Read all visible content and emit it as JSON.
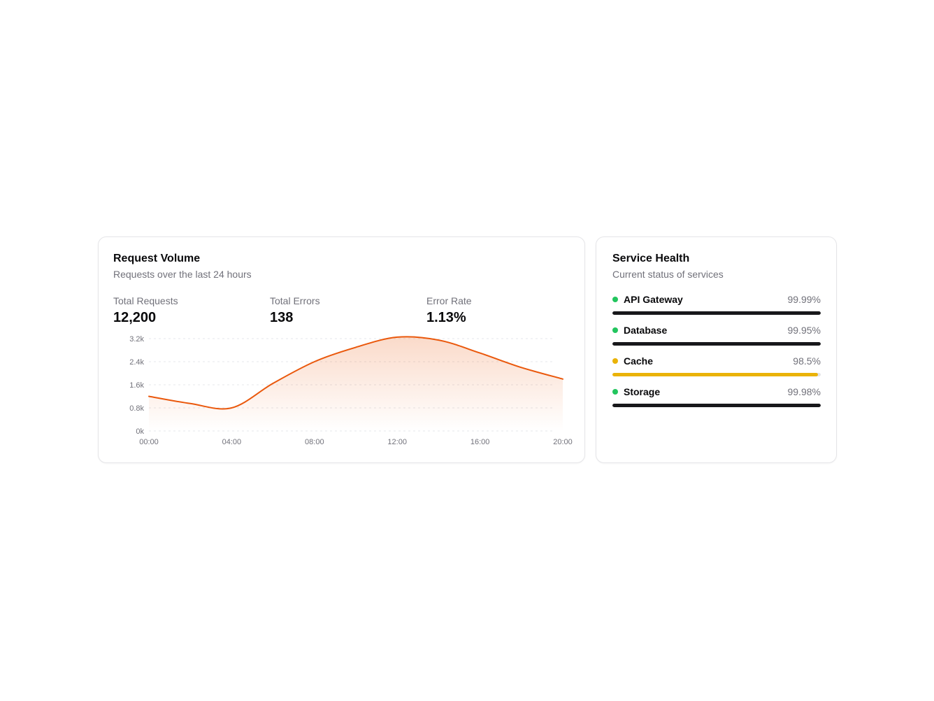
{
  "request_volume_card": {
    "title": "Request Volume",
    "subtitle": "Requests over the last 24 hours",
    "stats": [
      {
        "label": "Total Requests",
        "value": "12,200"
      },
      {
        "label": "Total Errors",
        "value": "138"
      },
      {
        "label": "Error Rate",
        "value": "1.13%"
      }
    ]
  },
  "chart_data": {
    "type": "area",
    "title": "Request Volume",
    "xlabel": "",
    "ylabel": "",
    "x": [
      "00:00",
      "02:00",
      "04:00",
      "06:00",
      "08:00",
      "10:00",
      "12:00",
      "14:00",
      "16:00",
      "18:00",
      "20:00"
    ],
    "values": [
      1200,
      950,
      800,
      1650,
      2400,
      2900,
      3250,
      3150,
      2700,
      2200,
      1800
    ],
    "ylim": [
      0,
      3200
    ],
    "y_tick_values": [
      0,
      800,
      1600,
      2400,
      3200
    ],
    "y_tick_labels": [
      "0k",
      "0.8k",
      "1.6k",
      "2.4k",
      "3.2k"
    ],
    "x_tick_labels": [
      "00:00",
      "04:00",
      "08:00",
      "12:00",
      "16:00",
      "20:00"
    ],
    "grid": "dashed-horizontal",
    "legend": "none",
    "line_color": "#ea580c",
    "grid_color": "#e5e7eb",
    "axis_text_color": "#71717a"
  },
  "service_health_card": {
    "title": "Service Health",
    "subtitle": "Current status of services",
    "services": [
      {
        "name": "API Gateway",
        "uptime": "99.99%",
        "status_color": "#22c55e",
        "bar_color": "#18181b",
        "bar_pct": 99.99
      },
      {
        "name": "Database",
        "uptime": "99.95%",
        "status_color": "#22c55e",
        "bar_color": "#18181b",
        "bar_pct": 99.95
      },
      {
        "name": "Cache",
        "uptime": "98.5%",
        "status_color": "#eab308",
        "bar_color": "#eab308",
        "bar_pct": 98.5
      },
      {
        "name": "Storage",
        "uptime": "99.98%",
        "status_color": "#22c55e",
        "bar_color": "#18181b",
        "bar_pct": 99.98
      }
    ]
  }
}
